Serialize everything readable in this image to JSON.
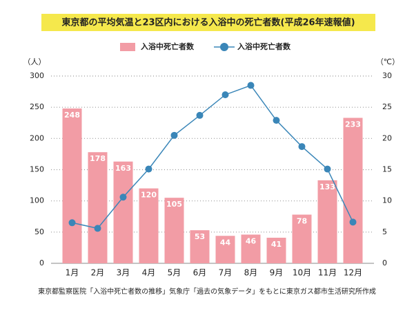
{
  "chart_data": {
    "type": "bar",
    "title": "東京都の平均気温と23区内における入浴中の死亡者数(平成26年速報値)",
    "y_label": "（人）",
    "y2_label": "（℃）",
    "source": "東京都監察医院「入浴中死亡者数の推移」気象庁「過去の気象データ」をもとに東京ガス都市生活研究所作成",
    "categories": [
      "1月",
      "2月",
      "3月",
      "4月",
      "5月",
      "6月",
      "7月",
      "8月",
      "9月",
      "10月",
      "11月",
      "12月"
    ],
    "series": [
      {
        "name": "入浴中死亡者数",
        "type": "bar",
        "color": "#f29ca5",
        "values": [
          248,
          178,
          163,
          120,
          105,
          53,
          44,
          46,
          41,
          78,
          133,
          233
        ]
      },
      {
        "name": "入浴中死亡者数",
        "type": "line",
        "axis": "y2",
        "color": "#3a86b8",
        "values": [
          6.5,
          5.6,
          10.6,
          15.1,
          20.5,
          23.7,
          27.0,
          28.5,
          22.9,
          18.7,
          15.1,
          6.6
        ]
      }
    ],
    "ylim": [
      0,
      300
    ],
    "yticks": [
      0,
      50,
      100,
      150,
      200,
      250,
      300
    ],
    "y2lim": [
      0,
      30
    ],
    "y2ticks": [
      0,
      5,
      10,
      15,
      20,
      25,
      30
    ],
    "grid": true,
    "title_background": "#f5e84c"
  }
}
